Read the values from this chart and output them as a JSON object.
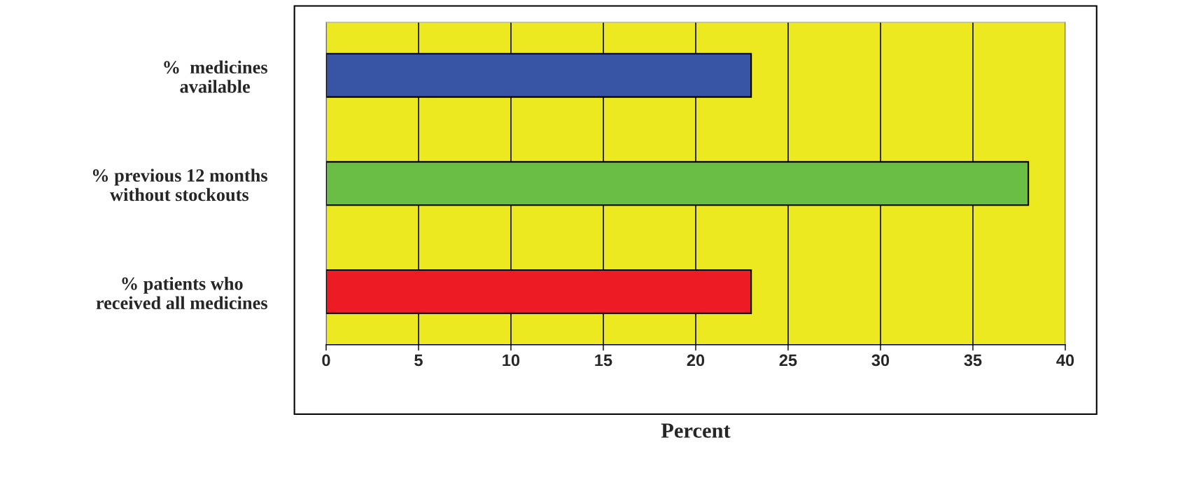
{
  "chart_data": {
    "type": "bar",
    "orientation": "horizontal",
    "xlabel": "Percent",
    "categories": [
      "%  medicines\navailable",
      "% previous 12 months\nwithout stockouts",
      "% patients who\nreceived all medicines"
    ],
    "values": [
      23,
      38,
      23
    ],
    "colors": [
      "#3855a5",
      "#6abd45",
      "#ed1c24"
    ],
    "xlim": [
      0,
      40
    ],
    "xticks": [
      0,
      5,
      10,
      15,
      20,
      25,
      30,
      35,
      40
    ],
    "grid": "x",
    "legend": false
  }
}
